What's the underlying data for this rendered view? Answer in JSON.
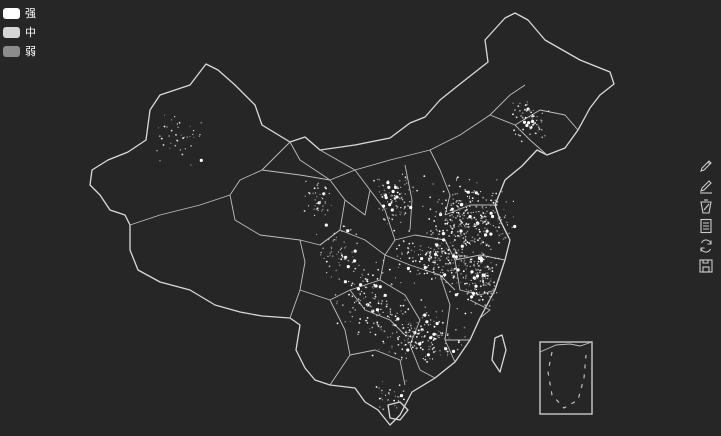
{
  "legend": {
    "items": [
      {
        "label": "强",
        "color": "#ffffff"
      },
      {
        "label": "中",
        "color": "#d6d6d6"
      },
      {
        "label": "弱",
        "color": "#8c8c8c"
      }
    ]
  },
  "toolbox": {
    "tools": [
      {
        "name": "mark-tool",
        "icon": "pencil-icon"
      },
      {
        "name": "mark-undo-tool",
        "icon": "pencil-undo-icon"
      },
      {
        "name": "mark-clear-tool",
        "icon": "eraser-icon"
      },
      {
        "name": "data-view-tool",
        "icon": "document-icon"
      },
      {
        "name": "restore-tool",
        "icon": "refresh-icon"
      },
      {
        "name": "save-image-tool",
        "icon": "save-icon"
      }
    ]
  },
  "colors": {
    "background": "#262626",
    "border": "#d9d9d9",
    "icon": "#cccccc"
  }
}
